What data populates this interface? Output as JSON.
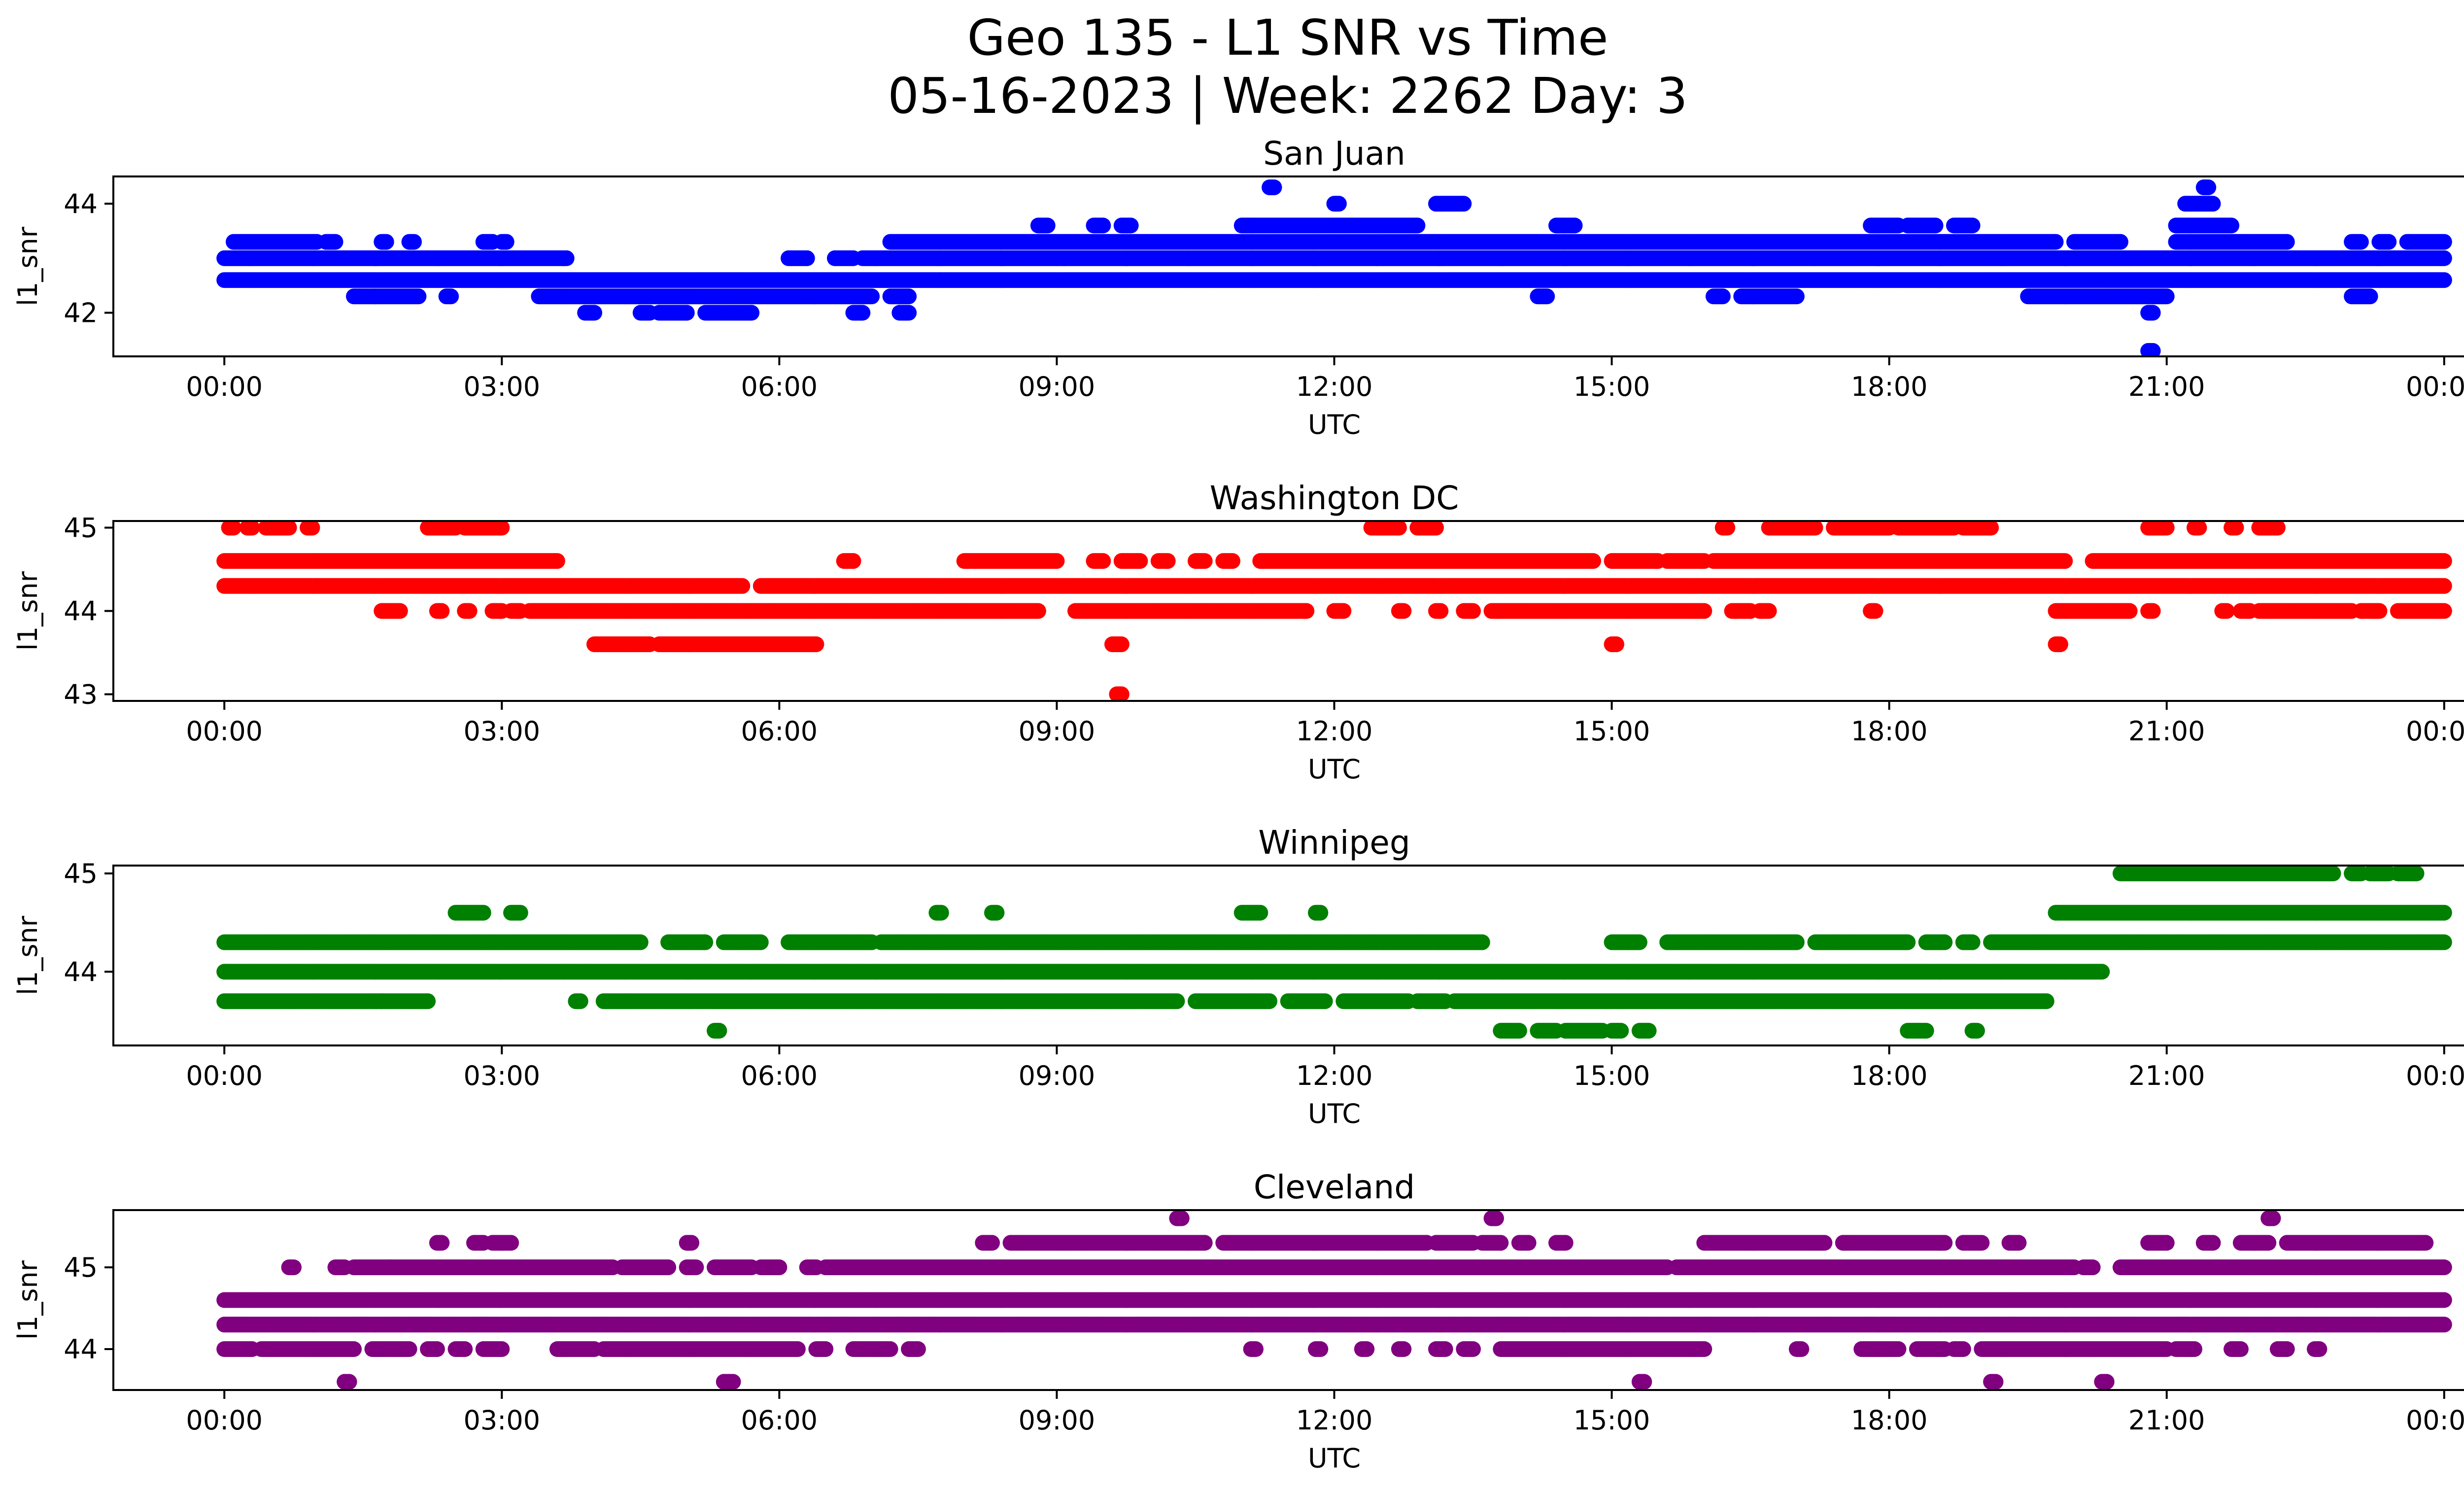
{
  "figure": {
    "title_line1": "Geo 135 - L1 SNR vs Time",
    "title_line2": "05-16-2023 | Week: 2262 Day: 3"
  },
  "chart_data": [
    {
      "type": "scatter",
      "title": "San Juan",
      "xlabel": "UTC",
      "ylabel": "l1_snr",
      "color": "#0000ff",
      "x_ticks": [
        "00:00",
        "03:00",
        "06:00",
        "09:00",
        "12:00",
        "15:00",
        "18:00",
        "21:00",
        "00:00"
      ],
      "x_range_hours": [
        -1.2,
        25.2
      ],
      "y_ticks": [
        42,
        44
      ],
      "ylim": [
        41.2,
        44.5
      ],
      "series": [
        {
          "y": 42.6,
          "runs": [
            [
              0.0,
              24.0
            ]
          ]
        },
        {
          "y": 43.0,
          "runs": [
            [
              0.0,
              3.7
            ],
            [
              6.1,
              6.3
            ],
            [
              6.6,
              6.8
            ],
            [
              6.9,
              24.0
            ]
          ]
        },
        {
          "y": 43.3,
          "runs": [
            [
              0.1,
              1.0
            ],
            [
              1.1,
              1.2
            ],
            [
              1.7,
              1.75
            ],
            [
              2.0,
              2.05
            ],
            [
              2.8,
              2.9
            ],
            [
              3.0,
              3.05
            ],
            [
              7.2,
              19.8
            ],
            [
              20.0,
              20.5
            ],
            [
              21.1,
              22.3
            ],
            [
              23.0,
              23.1
            ],
            [
              23.3,
              23.4
            ],
            [
              23.6,
              24.0
            ]
          ]
        },
        {
          "y": 42.3,
          "runs": [
            [
              1.4,
              2.1
            ],
            [
              2.4,
              2.45
            ],
            [
              3.4,
              7.0
            ],
            [
              7.2,
              7.4
            ],
            [
              14.2,
              14.3
            ],
            [
              16.1,
              16.2
            ],
            [
              16.4,
              17.0
            ],
            [
              19.5,
              21.0
            ],
            [
              23.0,
              23.2
            ]
          ]
        },
        {
          "y": 43.6,
          "runs": [
            [
              8.8,
              8.9
            ],
            [
              9.4,
              9.5
            ],
            [
              9.7,
              9.8
            ],
            [
              11.0,
              12.9
            ],
            [
              14.4,
              14.6
            ],
            [
              17.8,
              18.1
            ],
            [
              18.2,
              18.5
            ],
            [
              18.7,
              18.9
            ],
            [
              21.1,
              21.7
            ]
          ]
        },
        {
          "y": 42.0,
          "runs": [
            [
              3.9,
              4.0
            ],
            [
              4.5,
              4.6
            ],
            [
              4.7,
              5.0
            ],
            [
              5.2,
              5.7
            ],
            [
              6.8,
              6.9
            ],
            [
              7.3,
              7.4
            ],
            [
              20.8,
              20.85
            ]
          ]
        },
        {
          "y": 44.0,
          "runs": [
            [
              12.0,
              12.05
            ],
            [
              13.1,
              13.4
            ],
            [
              21.2,
              21.5
            ]
          ]
        },
        {
          "y": 44.3,
          "runs": [
            [
              11.3,
              11.35
            ],
            [
              21.4,
              21.45
            ]
          ]
        },
        {
          "y": 41.3,
          "runs": [
            [
              20.8,
              20.85
            ]
          ]
        }
      ]
    },
    {
      "type": "scatter",
      "title": "Washington DC",
      "xlabel": "UTC",
      "ylabel": "l1_snr",
      "color": "#ff0000",
      "x_ticks": [
        "00:00",
        "03:00",
        "06:00",
        "09:00",
        "12:00",
        "15:00",
        "18:00",
        "21:00",
        "00:00"
      ],
      "x_range_hours": [
        -1.2,
        25.2
      ],
      "y_ticks": [
        43,
        44,
        45
      ],
      "ylim": [
        42.92,
        45.08
      ],
      "series": [
        {
          "y": 44.3,
          "runs": [
            [
              0.0,
              5.6
            ],
            [
              5.8,
              24.0
            ]
          ]
        },
        {
          "y": 44.6,
          "runs": [
            [
              0.0,
              3.6
            ],
            [
              6.7,
              6.8
            ],
            [
              8.0,
              9.0
            ],
            [
              9.4,
              9.5
            ],
            [
              9.7,
              9.9
            ],
            [
              10.1,
              10.2
            ],
            [
              10.5,
              10.6
            ],
            [
              10.8,
              10.9
            ],
            [
              11.2,
              14.8
            ],
            [
              15.0,
              15.5
            ],
            [
              15.6,
              16.0
            ],
            [
              16.1,
              19.9
            ],
            [
              20.2,
              24.0
            ]
          ]
        },
        {
          "y": 44.0,
          "runs": [
            [
              1.7,
              1.9
            ],
            [
              2.3,
              2.35
            ],
            [
              2.6,
              2.65
            ],
            [
              2.9,
              3.0
            ],
            [
              3.1,
              3.2
            ],
            [
              3.3,
              8.8
            ],
            [
              9.2,
              11.7
            ],
            [
              12.0,
              12.1
            ],
            [
              12.7,
              12.75
            ],
            [
              13.1,
              13.15
            ],
            [
              13.4,
              13.5
            ],
            [
              13.7,
              16.0
            ],
            [
              16.3,
              16.5
            ],
            [
              16.6,
              16.7
            ],
            [
              17.8,
              17.85
            ],
            [
              19.8,
              20.6
            ],
            [
              20.8,
              20.85
            ],
            [
              21.6,
              21.65
            ],
            [
              21.8,
              21.9
            ],
            [
              22.0,
              23.0
            ],
            [
              23.1,
              23.3
            ],
            [
              23.5,
              24.0
            ]
          ]
        },
        {
          "y": 45.0,
          "runs": [
            [
              0.05,
              0.1
            ],
            [
              0.25,
              0.3
            ],
            [
              0.45,
              0.7
            ],
            [
              0.9,
              0.95
            ],
            [
              2.2,
              2.5
            ],
            [
              2.6,
              3.0
            ],
            [
              12.4,
              12.7
            ],
            [
              12.9,
              13.1
            ],
            [
              16.2,
              16.25
            ],
            [
              16.7,
              17.2
            ],
            [
              17.4,
              18.0
            ],
            [
              18.1,
              18.7
            ],
            [
              18.8,
              19.1
            ],
            [
              20.8,
              21.0
            ],
            [
              21.3,
              21.35
            ],
            [
              21.7,
              21.75
            ],
            [
              22.0,
              22.2
            ]
          ]
        },
        {
          "y": 43.6,
          "runs": [
            [
              4.0,
              4.6
            ],
            [
              4.7,
              6.4
            ],
            [
              9.6,
              9.7
            ],
            [
              15.0,
              15.05
            ],
            [
              19.8,
              19.85
            ]
          ]
        },
        {
          "y": 43.0,
          "runs": [
            [
              9.65,
              9.7
            ]
          ]
        }
      ]
    },
    {
      "type": "scatter",
      "title": "Winnipeg",
      "xlabel": "UTC",
      "ylabel": "l1_snr",
      "color": "#008000",
      "x_ticks": [
        "00:00",
        "03:00",
        "06:00",
        "09:00",
        "12:00",
        "15:00",
        "18:00",
        "21:00",
        "00:00"
      ],
      "x_range_hours": [
        -1.2,
        25.2
      ],
      "y_ticks": [
        44,
        45
      ],
      "ylim": [
        43.25,
        45.08
      ],
      "series": [
        {
          "y": 44.0,
          "runs": [
            [
              0.0,
              20.3
            ]
          ]
        },
        {
          "y": 44.3,
          "runs": [
            [
              0.0,
              4.5
            ],
            [
              4.8,
              5.2
            ],
            [
              5.4,
              5.8
            ],
            [
              6.1,
              7.0
            ],
            [
              7.1,
              13.6
            ],
            [
              15.0,
              15.3
            ],
            [
              15.6,
              17.0
            ],
            [
              17.2,
              18.2
            ],
            [
              18.4,
              18.6
            ],
            [
              18.8,
              18.9
            ],
            [
              19.1,
              24.0
            ]
          ]
        },
        {
          "y": 43.7,
          "runs": [
            [
              0.0,
              1.7
            ],
            [
              1.7,
              2.2
            ],
            [
              3.8,
              3.85
            ],
            [
              4.1,
              10.3
            ],
            [
              10.5,
              11.3
            ],
            [
              11.5,
              11.9
            ],
            [
              12.1,
              12.8
            ],
            [
              12.9,
              13.2
            ],
            [
              13.3,
              19.7
            ]
          ]
        },
        {
          "y": 44.6,
          "runs": [
            [
              2.5,
              2.8
            ],
            [
              3.1,
              3.2
            ],
            [
              7.7,
              7.75
            ],
            [
              8.3,
              8.35
            ],
            [
              11.0,
              11.2
            ],
            [
              11.8,
              11.85
            ],
            [
              19.8,
              24.0
            ]
          ]
        },
        {
          "y": 45.0,
          "runs": [
            [
              20.5,
              22.8
            ],
            [
              23.0,
              23.1
            ],
            [
              23.2,
              23.4
            ],
            [
              23.5,
              23.7
            ]
          ]
        },
        {
          "y": 43.4,
          "runs": [
            [
              5.3,
              5.35
            ],
            [
              13.8,
              14.0
            ],
            [
              14.2,
              14.4
            ],
            [
              14.5,
              14.9
            ],
            [
              15.0,
              15.1
            ],
            [
              15.3,
              15.4
            ],
            [
              18.2,
              18.4
            ],
            [
              18.9,
              18.95
            ]
          ]
        }
      ]
    },
    {
      "type": "scatter",
      "title": "Cleveland",
      "xlabel": "UTC",
      "ylabel": "l1_snr",
      "color": "#800080",
      "x_ticks": [
        "00:00",
        "03:00",
        "06:00",
        "09:00",
        "12:00",
        "15:00",
        "18:00",
        "21:00",
        "00:00"
      ],
      "x_range_hours": [
        -1.2,
        25.2
      ],
      "y_ticks": [
        44,
        45
      ],
      "ylim": [
        43.5,
        45.7
      ],
      "series": [
        {
          "y": 44.3,
          "runs": [
            [
              0.0,
              24.0
            ]
          ]
        },
        {
          "y": 44.6,
          "runs": [
            [
              0.0,
              24.0
            ]
          ]
        },
        {
          "y": 45.0,
          "runs": [
            [
              0.7,
              0.75
            ],
            [
              1.2,
              1.3
            ],
            [
              1.4,
              1.8
            ],
            [
              1.8,
              4.2
            ],
            [
              4.3,
              4.8
            ],
            [
              5.0,
              5.1
            ],
            [
              5.3,
              5.7
            ],
            [
              5.8,
              6.0
            ],
            [
              6.3,
              6.4
            ],
            [
              6.5,
              15.6
            ],
            [
              15.7,
              20.0
            ],
            [
              20.1,
              20.2
            ],
            [
              20.5,
              24.0
            ]
          ]
        },
        {
          "y": 44.0,
          "runs": [
            [
              0.0,
              0.3
            ],
            [
              0.4,
              1.4
            ],
            [
              1.6,
              2.0
            ],
            [
              2.2,
              2.3
            ],
            [
              2.5,
              2.6
            ],
            [
              2.8,
              3.0
            ],
            [
              3.6,
              4.0
            ],
            [
              4.1,
              6.2
            ],
            [
              6.4,
              6.5
            ],
            [
              6.8,
              7.2
            ],
            [
              7.4,
              7.5
            ],
            [
              11.1,
              11.15
            ],
            [
              11.8,
              11.85
            ],
            [
              12.3,
              12.35
            ],
            [
              12.7,
              12.75
            ],
            [
              13.1,
              13.2
            ],
            [
              13.4,
              13.5
            ],
            [
              13.8,
              16.0
            ],
            [
              17.0,
              17.05
            ],
            [
              17.7,
              18.1
            ],
            [
              18.3,
              18.6
            ],
            [
              18.7,
              18.8
            ],
            [
              19.0,
              21.0
            ],
            [
              21.1,
              21.3
            ],
            [
              21.7,
              21.8
            ],
            [
              22.2,
              22.3
            ],
            [
              22.6,
              22.65
            ]
          ]
        },
        {
          "y": 45.3,
          "runs": [
            [
              2.3,
              2.35
            ],
            [
              2.7,
              2.8
            ],
            [
              2.9,
              3.1
            ],
            [
              5.0,
              5.05
            ],
            [
              8.2,
              8.3
            ],
            [
              8.5,
              10.6
            ],
            [
              10.8,
              13.0
            ],
            [
              13.1,
              13.5
            ],
            [
              13.6,
              13.8
            ],
            [
              14.0,
              14.1
            ],
            [
              14.4,
              14.5
            ],
            [
              16.0,
              17.3
            ],
            [
              17.5,
              18.6
            ],
            [
              18.8,
              19.0
            ],
            [
              19.3,
              19.4
            ],
            [
              20.8,
              21.0
            ],
            [
              21.4,
              21.5
            ],
            [
              21.8,
              22.1
            ],
            [
              22.3,
              23.8
            ]
          ]
        },
        {
          "y": 45.6,
          "runs": [
            [
              10.3,
              10.35
            ],
            [
              13.7,
              13.75
            ],
            [
              22.1,
              22.15
            ]
          ]
        },
        {
          "y": 43.6,
          "runs": [
            [
              1.3,
              1.35
            ],
            [
              5.4,
              5.5
            ],
            [
              15.3,
              15.35
            ],
            [
              19.1,
              19.15
            ],
            [
              20.3,
              20.35
            ]
          ]
        }
      ]
    }
  ]
}
